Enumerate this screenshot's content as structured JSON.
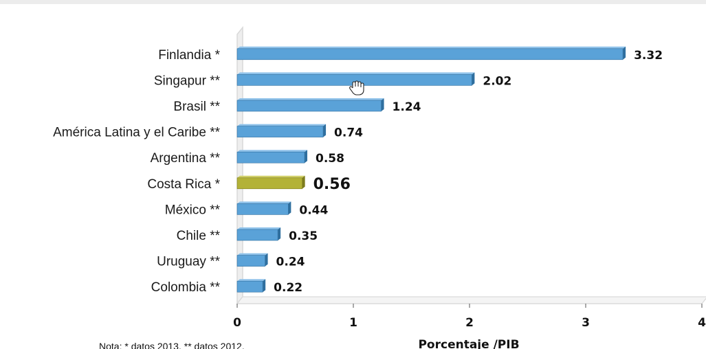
{
  "chart_data": {
    "type": "bar",
    "orientation": "horizontal",
    "categories": [
      "Finlandia *",
      "Singapur **",
      "Brasil **",
      "América Latina y el Caribe **",
      "Argentina **",
      "Costa Rica *",
      "México **",
      "Chile **",
      "Uruguay **",
      "Colombia **"
    ],
    "values": [
      3.32,
      2.02,
      1.24,
      0.74,
      0.58,
      0.56,
      0.44,
      0.35,
      0.24,
      0.22
    ],
    "value_labels": [
      "3.32",
      "2.02",
      "1.24",
      "0.74",
      "0.58",
      "0.56",
      "0.44",
      "0.35",
      "0.24",
      "0.22"
    ],
    "highlight_index": 5,
    "xlabel": "Porcentaje /PIB",
    "ylabel": "",
    "xlim": [
      0,
      4
    ],
    "xticks": [
      "0",
      "1",
      "2",
      "3",
      "4"
    ],
    "grid": false,
    "colors": {
      "bar": "#5aa2d8",
      "bar_dark": "#2f6f9f",
      "highlight": "#b3b237",
      "highlight_dark": "#7c7b1e",
      "wall": "#d9d9d9",
      "axis": "#555555"
    }
  },
  "note": "Nota: * datos 2013. ** datos 2012."
}
